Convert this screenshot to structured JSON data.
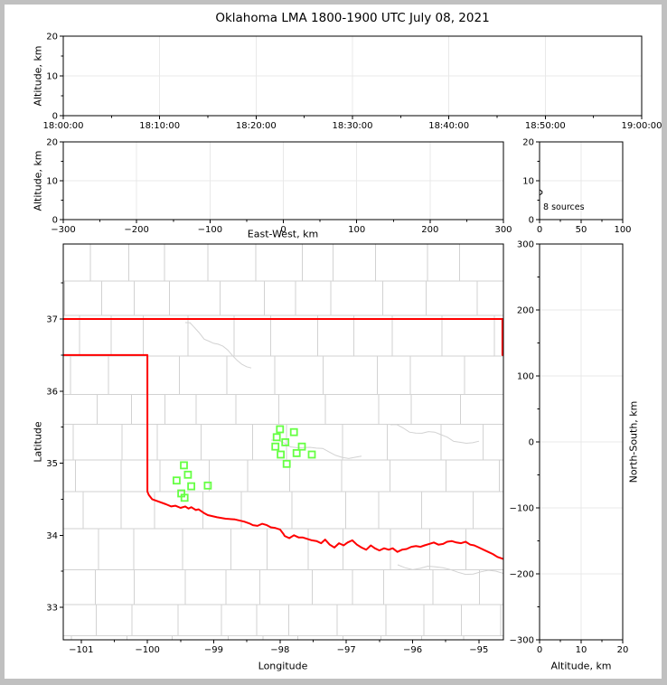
{
  "title": "Oklahoma LMA 1800-1900 UTC July 08, 2021",
  "colors": {
    "background": "#ffffff",
    "outer_frame": "#c0c0c0",
    "axis": "#000000",
    "grid": "#e9e9e9",
    "county_lines": "#d2d2d2",
    "state_border": "#ff0000",
    "station_marker": "#66ff44"
  },
  "chart_data": [
    {
      "id": "time_height_panel",
      "type": "scatter",
      "ylabel": "Altitude, km",
      "xtick_labels": [
        "18:00:00",
        "18:10:00",
        "18:20:00",
        "18:30:00",
        "18:40:00",
        "18:50:00",
        "19:00:00"
      ],
      "xlim_seconds": [
        0,
        3600
      ],
      "ylim": [
        0,
        20
      ],
      "yticks": [
        0,
        10,
        20
      ],
      "points": []
    },
    {
      "id": "eastwest_height_panel",
      "type": "scatter",
      "xlabel": "East-West, km",
      "ylabel": "Altitude, km",
      "xlim": [
        -300,
        300
      ],
      "xticks": [
        -300,
        -200,
        -100,
        0,
        100,
        200,
        300
      ],
      "ylim": [
        0,
        20
      ],
      "yticks": [
        0,
        10,
        20
      ],
      "points": []
    },
    {
      "id": "altitude_histogram_panel",
      "type": "line",
      "annotation": "8 sources",
      "xlim": [
        0,
        100
      ],
      "xticks": [
        0,
        50,
        100
      ],
      "ylim": [
        0,
        20
      ],
      "yticks": [
        0,
        10,
        20
      ],
      "spike": {
        "altitude_km": 7,
        "count": 3
      }
    },
    {
      "id": "plan_view_map",
      "type": "scatter",
      "xlabel": "Longitude",
      "ylabel": "Latitude",
      "xlim": [
        -101.27,
        -94.63
      ],
      "xticks": [
        -101,
        -100,
        -99,
        -98,
        -97,
        -96,
        -95
      ],
      "ylim": [
        32.55,
        38.04
      ],
      "yticks": [
        33,
        34,
        35,
        36,
        37
      ],
      "stations": [
        [
          -99.45,
          34.97
        ],
        [
          -99.39,
          34.84
        ],
        [
          -99.56,
          34.76
        ],
        [
          -99.34,
          34.68
        ],
        [
          -99.09,
          34.69
        ],
        [
          -99.49,
          34.58
        ],
        [
          -99.44,
          34.52
        ],
        [
          -98.0,
          35.47
        ],
        [
          -97.79,
          35.43
        ],
        [
          -98.05,
          35.36
        ],
        [
          -97.92,
          35.29
        ],
        [
          -98.07,
          35.23
        ],
        [
          -97.67,
          35.23
        ],
        [
          -97.99,
          35.12
        ],
        [
          -97.75,
          35.14
        ],
        [
          -97.52,
          35.12
        ],
        [
          -97.9,
          34.99
        ]
      ],
      "state_border": {
        "north": [
          [
            -101.27,
            37.0
          ],
          [
            -94.63,
            37.0
          ]
        ],
        "missouri_edge": [
          [
            -94.645,
            37.0
          ],
          [
            -94.645,
            36.5
          ]
        ],
        "west_and_red_river": [
          [
            -101.27,
            36.5
          ],
          [
            -100.0,
            36.5
          ],
          [
            -100.0,
            34.605
          ],
          [
            -99.98,
            34.56
          ],
          [
            -99.93,
            34.5
          ],
          [
            -99.84,
            34.47
          ],
          [
            -99.72,
            34.43
          ],
          [
            -99.64,
            34.4
          ],
          [
            -99.58,
            34.41
          ],
          [
            -99.5,
            34.38
          ],
          [
            -99.43,
            34.4
          ],
          [
            -99.38,
            34.37
          ],
          [
            -99.34,
            34.39
          ],
          [
            -99.27,
            34.35
          ],
          [
            -99.23,
            34.36
          ],
          [
            -99.15,
            34.31
          ],
          [
            -99.09,
            34.28
          ],
          [
            -98.95,
            34.25
          ],
          [
            -98.82,
            34.23
          ],
          [
            -98.68,
            34.22
          ],
          [
            -98.54,
            34.19
          ],
          [
            -98.45,
            34.16
          ],
          [
            -98.41,
            34.14
          ],
          [
            -98.34,
            34.13
          ],
          [
            -98.27,
            34.16
          ],
          [
            -98.2,
            34.14
          ],
          [
            -98.14,
            34.11
          ],
          [
            -98.07,
            34.1
          ],
          [
            -98.0,
            34.08
          ],
          [
            -97.95,
            34.02
          ],
          [
            -97.93,
            33.99
          ],
          [
            -97.86,
            33.96
          ],
          [
            -97.79,
            34.0
          ],
          [
            -97.72,
            33.97
          ],
          [
            -97.66,
            33.97
          ],
          [
            -97.59,
            33.95
          ],
          [
            -97.52,
            33.93
          ],
          [
            -97.45,
            33.92
          ],
          [
            -97.38,
            33.89
          ],
          [
            -97.32,
            33.94
          ],
          [
            -97.25,
            33.87
          ],
          [
            -97.18,
            33.83
          ],
          [
            -97.11,
            33.89
          ],
          [
            -97.04,
            33.86
          ],
          [
            -96.98,
            33.9
          ],
          [
            -96.91,
            33.93
          ],
          [
            -96.84,
            33.87
          ],
          [
            -96.77,
            33.83
          ],
          [
            -96.7,
            33.8
          ],
          [
            -96.63,
            33.86
          ],
          [
            -96.57,
            33.82
          ],
          [
            -96.5,
            33.79
          ],
          [
            -96.43,
            33.82
          ],
          [
            -96.36,
            33.8
          ],
          [
            -96.3,
            33.82
          ],
          [
            -96.23,
            33.77
          ],
          [
            -96.16,
            33.8
          ],
          [
            -96.09,
            33.81
          ],
          [
            -96.02,
            33.84
          ],
          [
            -95.95,
            33.85
          ],
          [
            -95.88,
            33.84
          ],
          [
            -95.82,
            33.86
          ],
          [
            -95.75,
            33.88
          ],
          [
            -95.68,
            33.9
          ],
          [
            -95.61,
            33.87
          ],
          [
            -95.54,
            33.88
          ],
          [
            -95.48,
            33.91
          ],
          [
            -95.41,
            33.92
          ],
          [
            -95.34,
            33.9
          ],
          [
            -95.27,
            33.89
          ],
          [
            -95.2,
            33.91
          ],
          [
            -95.13,
            33.87
          ],
          [
            -95.07,
            33.86
          ],
          [
            -95.0,
            33.83
          ],
          [
            -94.93,
            33.8
          ],
          [
            -94.86,
            33.77
          ],
          [
            -94.79,
            33.74
          ],
          [
            -94.72,
            33.7
          ],
          [
            -94.63,
            33.67
          ]
        ]
      }
    },
    {
      "id": "northsouth_height_panel",
      "type": "scatter",
      "xlabel": "Altitude, km",
      "ylabel": "North-South, km",
      "xlim": [
        0,
        20
      ],
      "xticks": [
        0,
        10,
        20
      ],
      "ylim": [
        -300,
        300
      ],
      "yticks": [
        -300,
        -200,
        -100,
        0,
        100,
        200,
        300
      ],
      "points": []
    }
  ]
}
